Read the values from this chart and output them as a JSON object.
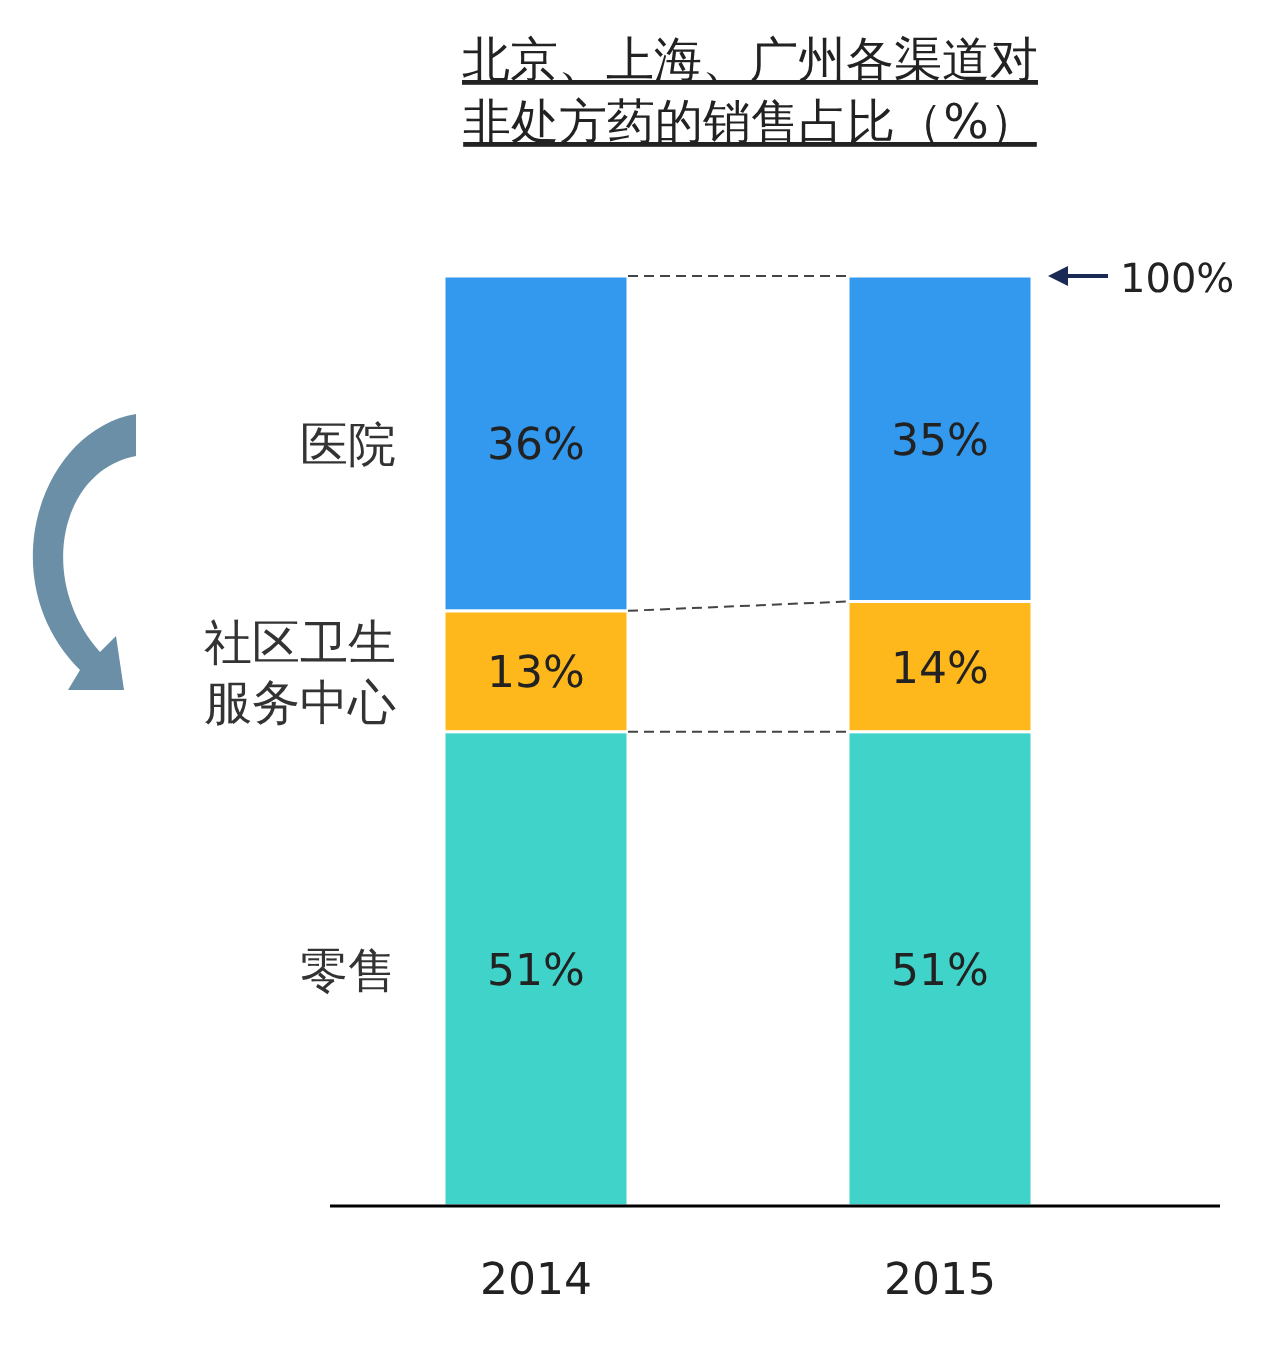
{
  "chart_data": {
    "type": "bar",
    "stacked": true,
    "title": "北京、上海、广州各渠道对非处方药的销售占比（%）",
    "categories": [
      "2014",
      "2015"
    ],
    "series": [
      {
        "name": "零售",
        "color": "#3fd3c9",
        "values": [
          51,
          51
        ],
        "value_labels": [
          "51%",
          "51%"
        ]
      },
      {
        "name": "社区卫生服务中心",
        "color": "#ffb81c",
        "values": [
          13,
          14
        ],
        "value_labels": [
          "13%",
          "14%"
        ]
      },
      {
        "name": "医院",
        "color": "#3399ee",
        "values": [
          36,
          35
        ],
        "value_labels": [
          "36%",
          "35%"
        ]
      }
    ],
    "ylim": [
      0,
      100
    ],
    "annotations": [
      "100%"
    ]
  }
}
